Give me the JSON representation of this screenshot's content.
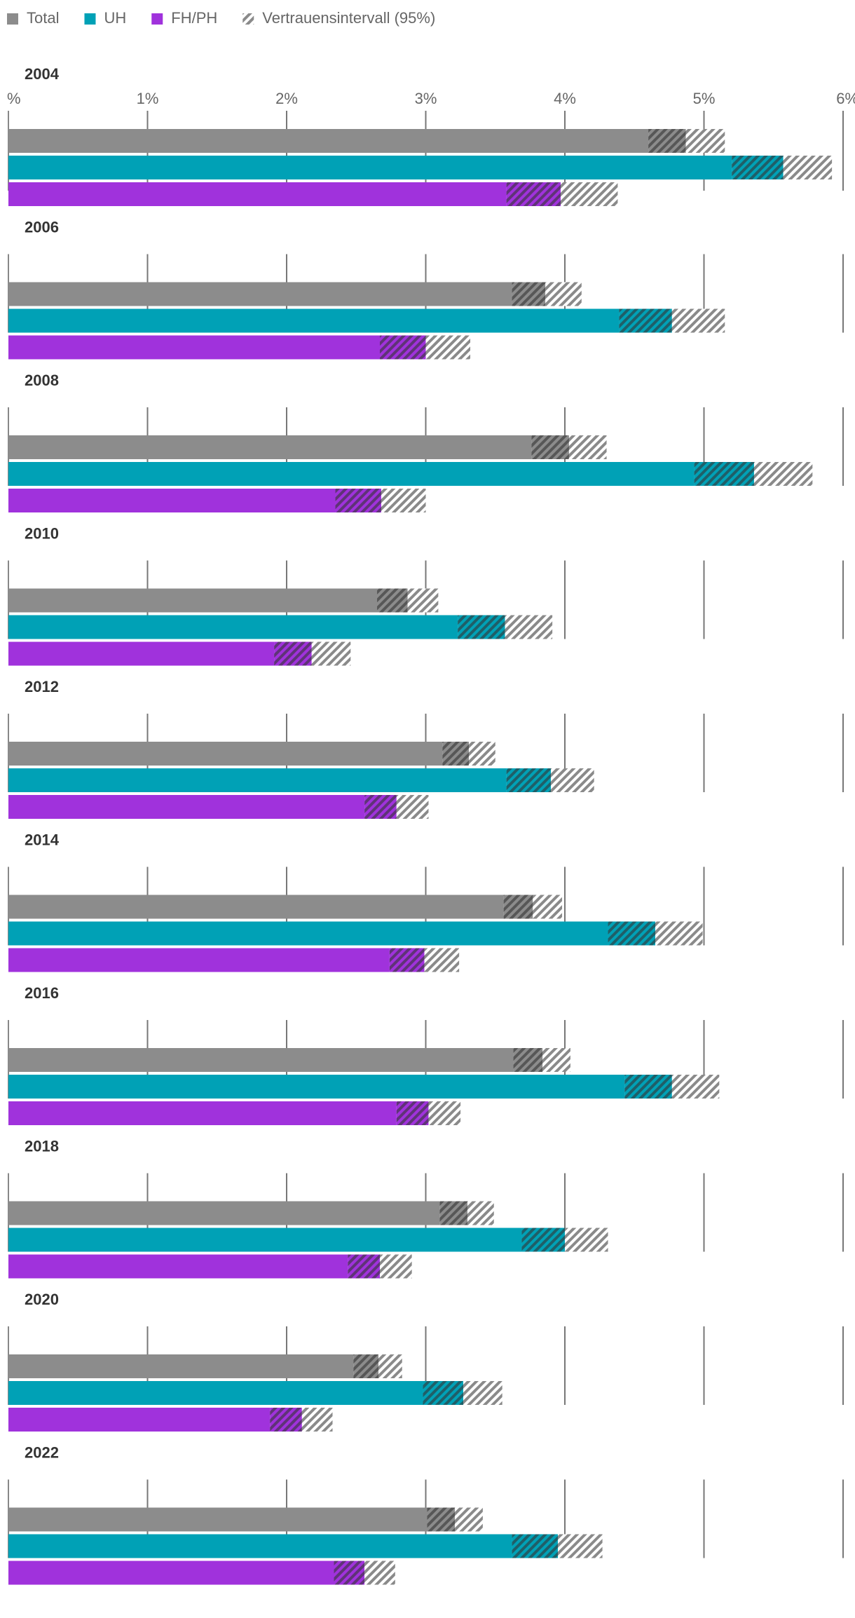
{
  "chart_data": {
    "type": "bar",
    "orientation": "horizontal",
    "unit": "%",
    "xlim": [
      0,
      6
    ],
    "axis_label": "%",
    "tick_values": [
      1,
      2,
      3,
      4,
      5,
      6
    ],
    "tick_labels": [
      "1%",
      "2%",
      "3%",
      "4%",
      "5%",
      "6%"
    ],
    "legend": {
      "position": "top-left",
      "items": [
        {
          "label": "Total",
          "color": "#8c8c8c",
          "pattern": false
        },
        {
          "label": "UH",
          "color": "#00a1b6",
          "pattern": false
        },
        {
          "label": "FH/PH",
          "color": "#a032dc",
          "pattern": false
        },
        {
          "label": "Vertrauensintervall (95%)",
          "color": "#8c8c8c",
          "pattern": true
        }
      ]
    },
    "series_names": [
      "Total",
      "UH",
      "FH/PH"
    ],
    "colors": [
      "#8c8c8c",
      "#00a1b6",
      "#a032dc"
    ],
    "panels": [
      {
        "year": "2004",
        "series": [
          {
            "name": "Total",
            "value": 4.87,
            "ci_low": 4.6,
            "ci_high": 5.15
          },
          {
            "name": "UH",
            "value": 5.57,
            "ci_low": 5.2,
            "ci_high": 5.92
          },
          {
            "name": "FH/PH",
            "value": 3.97,
            "ci_low": 3.58,
            "ci_high": 4.38
          }
        ]
      },
      {
        "year": "2006",
        "series": [
          {
            "name": "Total",
            "value": 3.86,
            "ci_low": 3.62,
            "ci_high": 4.12
          },
          {
            "name": "UH",
            "value": 4.77,
            "ci_low": 4.39,
            "ci_high": 5.15
          },
          {
            "name": "FH/PH",
            "value": 3.0,
            "ci_low": 2.67,
            "ci_high": 3.32
          }
        ]
      },
      {
        "year": "2008",
        "series": [
          {
            "name": "Total",
            "value": 4.03,
            "ci_low": 3.76,
            "ci_high": 4.3
          },
          {
            "name": "UH",
            "value": 5.36,
            "ci_low": 4.93,
            "ci_high": 5.78
          },
          {
            "name": "FH/PH",
            "value": 2.68,
            "ci_low": 2.35,
            "ci_high": 3.0
          }
        ]
      },
      {
        "year": "2010",
        "series": [
          {
            "name": "Total",
            "value": 2.87,
            "ci_low": 2.65,
            "ci_high": 3.09
          },
          {
            "name": "UH",
            "value": 3.57,
            "ci_low": 3.23,
            "ci_high": 3.91
          },
          {
            "name": "FH/PH",
            "value": 2.18,
            "ci_low": 1.91,
            "ci_high": 2.46
          }
        ]
      },
      {
        "year": "2012",
        "series": [
          {
            "name": "Total",
            "value": 3.31,
            "ci_low": 3.12,
            "ci_high": 3.5
          },
          {
            "name": "UH",
            "value": 3.9,
            "ci_low": 3.58,
            "ci_high": 4.21
          },
          {
            "name": "FH/PH",
            "value": 2.79,
            "ci_low": 2.56,
            "ci_high": 3.02
          }
        ]
      },
      {
        "year": "2014",
        "series": [
          {
            "name": "Total",
            "value": 3.77,
            "ci_low": 3.56,
            "ci_high": 3.98
          },
          {
            "name": "UH",
            "value": 4.65,
            "ci_low": 4.31,
            "ci_high": 4.99
          },
          {
            "name": "FH/PH",
            "value": 2.99,
            "ci_low": 2.74,
            "ci_high": 3.24
          }
        ]
      },
      {
        "year": "2016",
        "series": [
          {
            "name": "Total",
            "value": 3.84,
            "ci_low": 3.63,
            "ci_high": 4.04
          },
          {
            "name": "UH",
            "value": 4.77,
            "ci_low": 4.43,
            "ci_high": 5.11
          },
          {
            "name": "FH/PH",
            "value": 3.02,
            "ci_low": 2.79,
            "ci_high": 3.25
          }
        ]
      },
      {
        "year": "2018",
        "series": [
          {
            "name": "Total",
            "value": 3.3,
            "ci_low": 3.1,
            "ci_high": 3.49
          },
          {
            "name": "UH",
            "value": 4.0,
            "ci_low": 3.69,
            "ci_high": 4.31
          },
          {
            "name": "FH/PH",
            "value": 2.67,
            "ci_low": 2.44,
            "ci_high": 2.9
          }
        ]
      },
      {
        "year": "2020",
        "series": [
          {
            "name": "Total",
            "value": 2.66,
            "ci_low": 2.48,
            "ci_high": 2.83
          },
          {
            "name": "UH",
            "value": 3.27,
            "ci_low": 2.98,
            "ci_high": 3.55
          },
          {
            "name": "FH/PH",
            "value": 2.11,
            "ci_low": 1.88,
            "ci_high": 2.33
          }
        ]
      },
      {
        "year": "2022",
        "series": [
          {
            "name": "Total",
            "value": 3.21,
            "ci_low": 3.01,
            "ci_high": 3.41
          },
          {
            "name": "UH",
            "value": 3.95,
            "ci_low": 3.62,
            "ci_high": 4.27
          },
          {
            "name": "FH/PH",
            "value": 2.56,
            "ci_low": 2.34,
            "ci_high": 2.78
          }
        ]
      }
    ]
  }
}
